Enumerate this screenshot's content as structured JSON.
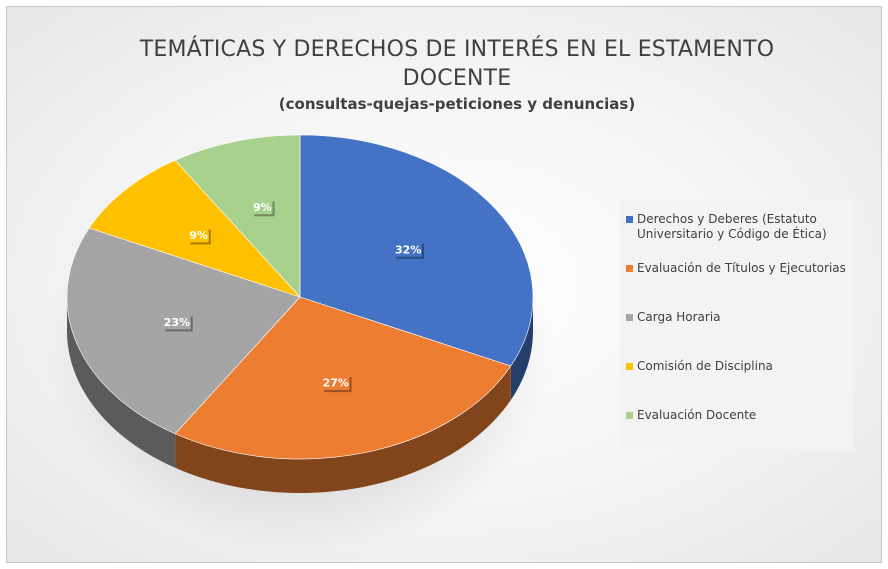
{
  "chart_data": {
    "type": "pie",
    "title": "TEMÁTICAS Y DERECHOS DE INTERÉS EN EL ESTAMENTO DOCENTE",
    "subtitle": "(consultas-quejas-peticiones y denuncias)",
    "legend_position": "right",
    "categories": [
      "Derechos y Deberes (Estatuto Universitario y Código de Ética)",
      "Evaluación de Títulos y Ejecutorias",
      "Carga Horaria",
      "Comisión de Disciplina",
      "Evaluación Docente"
    ],
    "values": [
      32,
      27,
      23,
      9,
      9
    ],
    "labels": [
      "32%",
      "27%",
      "23%",
      "9%",
      "9%"
    ],
    "colors": [
      "#4472C4",
      "#ED7D31",
      "#A5A5A5",
      "#FFC000",
      "#A9D18E"
    ]
  }
}
